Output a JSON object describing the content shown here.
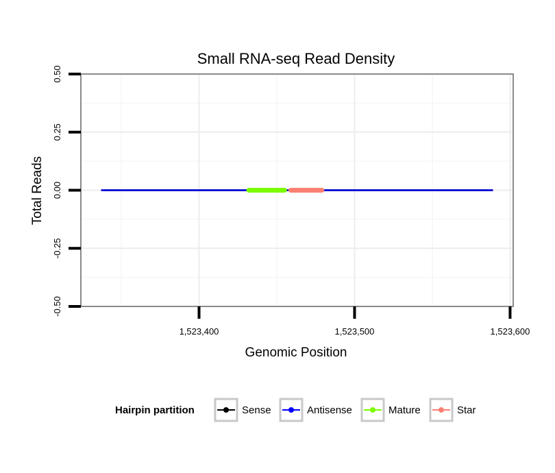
{
  "chart_data": {
    "type": "line",
    "title": "Small RNA-seq Read Density",
    "xlabel": "Genomic Position",
    "ylabel": "Total Reads",
    "xlim": [
      1523324,
      1523602
    ],
    "ylim": [
      -0.5,
      0.5
    ],
    "x_ticks": [
      1523400,
      1523500,
      1523600
    ],
    "x_tick_labels": [
      "1,523,400",
      "1,523,500",
      "1,523,600"
    ],
    "y_ticks": [
      -0.5,
      -0.25,
      0,
      0.25,
      0.5
    ],
    "y_tick_labels": [
      "-0.50",
      "-0.25",
      "0.00",
      "0.25",
      "0.50"
    ],
    "grid": true,
    "legend_position": "bottom",
    "legend": {
      "title": "Hairpin partition",
      "entries": [
        {
          "label": "Sense",
          "color": "#000000"
        },
        {
          "label": "Antisense",
          "color": "#0000ff"
        },
        {
          "label": "Mature",
          "color": "#7cfc00"
        },
        {
          "label": "Star",
          "color": "#fa8072"
        }
      ]
    },
    "series": [
      {
        "name": "Sense",
        "color": "#000000",
        "x": [
          1523337,
          1523589
        ],
        "y": [
          0,
          0
        ]
      },
      {
        "name": "Antisense",
        "color": "#0000ff",
        "x": [
          1523337,
          1523589
        ],
        "y": [
          0,
          0
        ]
      },
      {
        "name": "Mature",
        "color": "#7cfc00",
        "x": [
          1523432,
          1523455
        ],
        "y": [
          0,
          0
        ]
      },
      {
        "name": "Star",
        "color": "#fa8072",
        "x": [
          1523459,
          1523479
        ],
        "y": [
          0,
          0
        ]
      }
    ]
  }
}
